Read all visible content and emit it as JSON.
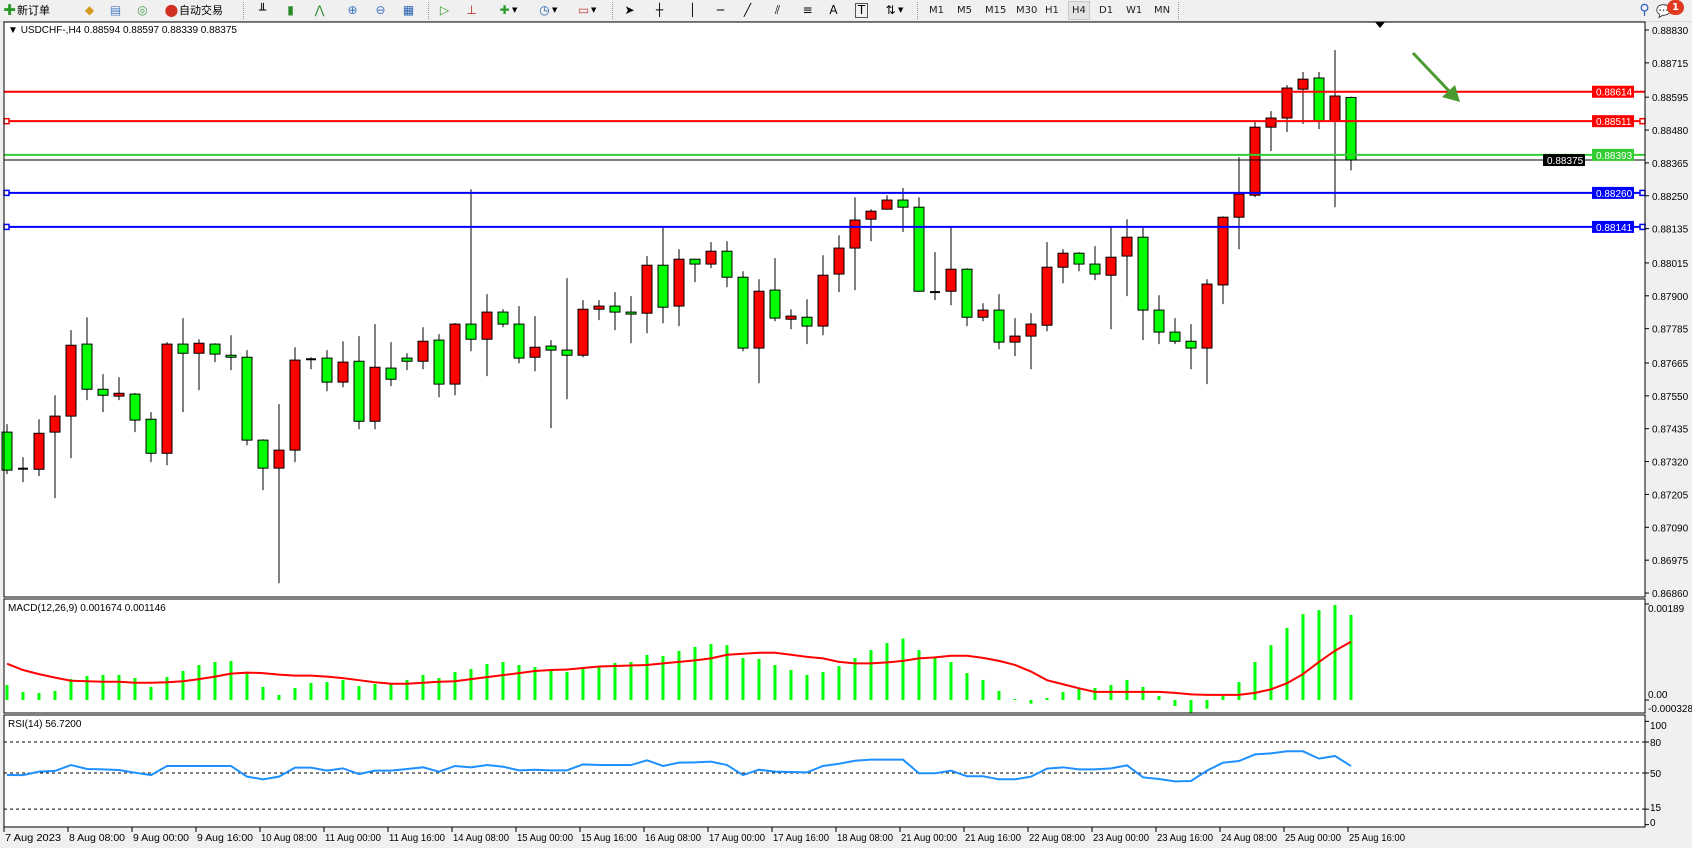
{
  "toolbar": {
    "new_order_label": "新订单",
    "auto_trading_label": "自动交易",
    "icons": [
      "new-order-icon",
      "history-icon",
      "terminal-icon",
      "signal-icon",
      "auto-trading-icon",
      "bar-chart-icon",
      "candlestick-icon",
      "line-chart-icon",
      "zoom-in-icon",
      "zoom-out-icon",
      "tile-windows-icon",
      "auto-scroll-icon",
      "chart-shift-icon",
      "indicators-icon",
      "periods-icon",
      "templates-icon",
      "cursor-icon",
      "crosshair-icon",
      "vertical-line-icon",
      "horizontal-line-icon",
      "trendline-icon",
      "equidistant-channel-icon",
      "fibonacci-icon",
      "text-icon",
      "text-label-icon",
      "arrows-icon"
    ],
    "text_tool_label": "A",
    "label_tool_label": "T",
    "timeframes": [
      "M1",
      "M5",
      "M15",
      "M30",
      "H1",
      "H4",
      "D1",
      "W1",
      "MN"
    ],
    "selected_timeframe": "H4",
    "notification_count": "1"
  },
  "chart": {
    "header": "USDCHF-,H4  0.88594 0.88597 0.88339 0.88375",
    "colors": {
      "bull": "#ff0000",
      "bear": "#00ff00",
      "doji": "#000000",
      "macd_hist": "#00ff00",
      "macd_signal": "#ff0000",
      "rsi": "#1e90ff",
      "arrow": "#4a9a30"
    },
    "price_ticks": [
      "0.88830",
      "0.88715",
      "0.88595",
      "0.88480",
      "0.88365",
      "0.88250",
      "0.88135",
      "0.88015",
      "0.87900",
      "0.87785",
      "0.87665",
      "0.87550",
      "0.87435",
      "0.87320",
      "0.87205",
      "0.87090",
      "0.86975",
      "0.86860"
    ],
    "hlines": [
      {
        "price": "0.88614",
        "color": "#ff0000",
        "handles": false
      },
      {
        "price": "0.88511",
        "color": "#ff0000",
        "handles": true
      },
      {
        "price": "0.88393",
        "color": "#32cd32",
        "handles": false
      },
      {
        "price": "0.88260",
        "color": "#0000ff",
        "handles": true
      },
      {
        "price": "0.88141",
        "color": "#0000ff",
        "handles": true
      }
    ],
    "current_price": "0.88375",
    "time_labels": [
      "7 Aug 2023",
      "8 Aug 08:00",
      "9 Aug 00:00",
      "9 Aug 16:00",
      "10 Aug 08:00",
      "11 Aug 00:00",
      "11 Aug 16:00",
      "14 Aug 08:00",
      "15 Aug 00:00",
      "15 Aug 16:00",
      "16 Aug 08:00",
      "17 Aug 00:00",
      "17 Aug 16:00",
      "18 Aug 08:00",
      "21 Aug 00:00",
      "21 Aug 16:00",
      "22 Aug 08:00",
      "23 Aug 00:00",
      "23 Aug 16:00",
      "24 Aug 08:00",
      "25 Aug 00:00",
      "25 Aug 16:00"
    ]
  },
  "chart_data": {
    "type": "candlestick",
    "symbol": "USDCHF-",
    "timeframe": "H4",
    "ylim": [
      0.8686,
      0.8883
    ],
    "ohlc": [
      [
        0.87423,
        0.87451,
        0.87276,
        0.8729
      ],
      [
        0.87295,
        0.87335,
        0.87248,
        0.87292
      ],
      [
        0.87293,
        0.87468,
        0.87269,
        0.87419
      ],
      [
        0.87423,
        0.87552,
        0.87192,
        0.87479
      ],
      [
        0.87479,
        0.8778,
        0.87332,
        0.87727
      ],
      [
        0.87731,
        0.87825,
        0.87535,
        0.87573
      ],
      [
        0.87573,
        0.87626,
        0.87493,
        0.87552
      ],
      [
        0.87549,
        0.87615,
        0.87535,
        0.87559
      ],
      [
        0.87556,
        0.8756,
        0.87423,
        0.87465
      ],
      [
        0.87468,
        0.87493,
        0.87318,
        0.87349
      ],
      [
        0.87349,
        0.87738,
        0.87307,
        0.87731
      ],
      [
        0.87731,
        0.87822,
        0.87493,
        0.87699
      ],
      [
        0.87699,
        0.87748,
        0.8757,
        0.87734
      ],
      [
        0.87731,
        0.87734,
        0.87668,
        0.87696
      ],
      [
        0.87692,
        0.87762,
        0.8764,
        0.87685
      ],
      [
        0.87685,
        0.8771,
        0.87377,
        0.87395
      ],
      [
        0.87395,
        0.87398,
        0.8722,
        0.87297
      ],
      [
        0.87297,
        0.87521,
        0.86894,
        0.8736
      ],
      [
        0.8736,
        0.8772,
        0.87318,
        0.87675
      ],
      [
        0.87678,
        0.87685,
        0.87643,
        0.87676
      ],
      [
        0.87682,
        0.8771,
        0.87566,
        0.87598
      ],
      [
        0.87598,
        0.87741,
        0.8758,
        0.87668
      ],
      [
        0.87671,
        0.87759,
        0.87433,
        0.87461
      ],
      [
        0.87461,
        0.87801,
        0.87433,
        0.8765
      ],
      [
        0.87647,
        0.87738,
        0.87584,
        0.87608
      ],
      [
        0.87682,
        0.87699,
        0.8764,
        0.87671
      ],
      [
        0.87671,
        0.8779,
        0.87643,
        0.87741
      ],
      [
        0.87745,
        0.87766,
        0.87545,
        0.87591
      ],
      [
        0.87591,
        0.87805,
        0.87552,
        0.87801
      ],
      [
        0.87801,
        0.88273,
        0.87706,
        0.87748
      ],
      [
        0.87748,
        0.87906,
        0.87619,
        0.87843
      ],
      [
        0.87843,
        0.87853,
        0.8779,
        0.87801
      ],
      [
        0.87801,
        0.87864,
        0.87664,
        0.87682
      ],
      [
        0.87685,
        0.87829,
        0.87636,
        0.8772
      ],
      [
        0.87724,
        0.87745,
        0.87437,
        0.8771
      ],
      [
        0.8771,
        0.87962,
        0.87538,
        0.87692
      ],
      [
        0.87692,
        0.87885,
        0.87685,
        0.87853
      ],
      [
        0.87853,
        0.87885,
        0.87815,
        0.87864
      ],
      [
        0.87864,
        0.87913,
        0.8778,
        0.87843
      ],
      [
        0.87843,
        0.87899,
        0.87734,
        0.87836
      ],
      [
        0.87839,
        0.88039,
        0.87769,
        0.88007
      ],
      [
        0.88007,
        0.88137,
        0.87804,
        0.8786
      ],
      [
        0.87864,
        0.88063,
        0.87794,
        0.88028
      ],
      [
        0.88028,
        0.8803,
        0.87948,
        0.88011
      ],
      [
        0.88011,
        0.88088,
        0.87997,
        0.88056
      ],
      [
        0.88056,
        0.88091,
        0.8793,
        0.87965
      ],
      [
        0.87965,
        0.87986,
        0.87706,
        0.87717
      ],
      [
        0.87717,
        0.87958,
        0.87594,
        0.87916
      ],
      [
        0.8792,
        0.88032,
        0.87811,
        0.87822
      ],
      [
        0.87818,
        0.87853,
        0.87783,
        0.87829
      ],
      [
        0.87825,
        0.87888,
        0.87731,
        0.87794
      ],
      [
        0.87794,
        0.88042,
        0.87762,
        0.87972
      ],
      [
        0.87976,
        0.88112,
        0.87913,
        0.88067
      ],
      [
        0.88067,
        0.88245,
        0.8792,
        0.88165
      ],
      [
        0.88168,
        0.88203,
        0.88091,
        0.88196
      ],
      [
        0.88203,
        0.88252,
        0.88203,
        0.88235
      ],
      [
        0.88235,
        0.88277,
        0.88123,
        0.8821
      ],
      [
        0.8821,
        0.88245,
        0.87914,
        0.87916
      ],
      [
        0.87913,
        0.88053,
        0.87885,
        0.87912
      ],
      [
        0.87916,
        0.8814,
        0.87867,
        0.87993
      ],
      [
        0.87993,
        0.87997,
        0.87794,
        0.87825
      ],
      [
        0.87825,
        0.87874,
        0.87811,
        0.8785
      ],
      [
        0.8785,
        0.87906,
        0.87713,
        0.87738
      ],
      [
        0.87738,
        0.87822,
        0.87689,
        0.87759
      ],
      [
        0.87759,
        0.87839,
        0.87643,
        0.87801
      ],
      [
        0.87797,
        0.88088,
        0.87776,
        0.88
      ],
      [
        0.88,
        0.88063,
        0.87944,
        0.88049
      ],
      [
        0.88049,
        0.88053,
        0.87986,
        0.88011
      ],
      [
        0.88011,
        0.88074,
        0.87955,
        0.87976
      ],
      [
        0.87972,
        0.8814,
        0.87783,
        0.88035
      ],
      [
        0.88039,
        0.88168,
        0.87899,
        0.88105
      ],
      [
        0.88105,
        0.88137,
        0.87745,
        0.8785
      ],
      [
        0.8785,
        0.87902,
        0.87731,
        0.87773
      ],
      [
        0.87773,
        0.87822,
        0.87731,
        0.87741
      ],
      [
        0.87741,
        0.87801,
        0.87643,
        0.87717
      ],
      [
        0.87717,
        0.87958,
        0.87591,
        0.87941
      ],
      [
        0.87938,
        0.88178,
        0.87871,
        0.88175
      ],
      [
        0.88175,
        0.88385,
        0.88063,
        0.88256
      ],
      [
        0.88252,
        0.88508,
        0.88245,
        0.8849
      ],
      [
        0.8849,
        0.88546,
        0.88406,
        0.88522
      ],
      [
        0.88522,
        0.88637,
        0.88473,
        0.88627
      ],
      [
        0.88623,
        0.88683,
        0.88501,
        0.88658
      ],
      [
        0.88662,
        0.88683,
        0.88483,
        0.88511
      ],
      [
        0.88511,
        0.8876,
        0.8821,
        0.88599
      ],
      [
        0.88594,
        0.88597,
        0.88339,
        0.88375
      ]
    ],
    "macd": {
      "label": "MACD(12,26,9) 0.001674 0.001146",
      "ylim": [
        -0.000328,
        0.00189
      ],
      "tick_labels": [
        "0.00189",
        "0.00",
        "-0.000328"
      ],
      "histogram": [
        0.000295,
        0.000157,
        0.000138,
        0.000177,
        0.000413,
        0.000472,
        0.000492,
        0.000492,
        0.000433,
        0.000256,
        0.000453,
        0.000571,
        0.000689,
        0.000748,
        0.000768,
        0.000545,
        0.000256,
        9.8e-05,
        0.000236,
        0.000335,
        0.000354,
        0.000394,
        0.000276,
        0.000315,
        0.000335,
        0.000394,
        0.000492,
        0.000433,
        0.000551,
        0.00061,
        0.000708,
        0.000748,
        0.000689,
        0.000649,
        0.00059,
        0.000551,
        0.00063,
        0.000669,
        0.000728,
        0.000748,
        0.000886,
        0.000866,
        0.000964,
        0.001043,
        0.0011,
        0.00108,
        0.000827,
        0.000807,
        0.000689,
        0.00059,
        0.000492,
        0.000551,
        0.000669,
        0.000827,
        0.000984,
        0.00112,
        0.00121,
        0.000984,
        0.000827,
        0.000748,
        0.000531,
        0.000394,
        0.000177,
        2e-05,
        -7.2e-05,
        3.9e-05,
        0.000157,
        0.000216,
        0.000236,
        0.000295,
        0.000394,
        0.000256,
        7.9e-05,
        -0.000118,
        -0.000249,
        -0.000171,
        7.9e-05,
        0.000354,
        0.000748,
        0.00108,
        0.00142,
        0.00169,
        0.00177,
        0.00187,
        0.001674
      ],
      "signal": [
        0.000715,
        0.00059,
        0.00051,
        0.00044,
        0.00038,
        0.00037,
        0.00036,
        0.00036,
        0.00034,
        0.00034,
        0.00035,
        0.00037,
        0.00041,
        0.00046,
        0.00052,
        0.00054,
        0.00053,
        0.0005,
        0.00048,
        0.00048,
        0.00046,
        0.00043,
        0.00039,
        0.00035,
        0.00032,
        0.00032,
        0.00034,
        0.00036,
        0.00037,
        0.00041,
        0.00045,
        0.00049,
        0.00053,
        0.00057,
        0.00059,
        0.0006,
        0.00063,
        0.00066,
        0.00067,
        0.00068,
        0.00069,
        0.00072,
        0.00075,
        0.00078,
        0.00082,
        0.00089,
        0.00091,
        0.00093,
        0.00093,
        0.00089,
        0.00085,
        0.00082,
        0.00075,
        0.00072,
        0.00072,
        0.00074,
        0.00077,
        0.00082,
        0.00084,
        0.00087,
        0.00087,
        0.00083,
        0.00077,
        0.00069,
        0.00056,
        0.00039,
        0.00031,
        0.00023,
        0.00016,
        0.00016,
        0.00016,
        0.00016,
        0.00016,
        0.00014,
        0.00011,
        0.0001,
        0.0001,
        0.0001,
        0.00014,
        0.00021,
        0.00033,
        0.00051,
        0.00075,
        0.00097,
        0.001146
      ]
    },
    "rsi": {
      "label": "RSI(14) 56.7200",
      "levels": [
        80,
        50,
        15
      ],
      "tick_labels": [
        "100",
        "80",
        "50",
        "15",
        "0"
      ],
      "values": [
        48.1,
        48,
        51.3,
        52,
        57.7,
        53.9,
        53.5,
        52.9,
        50.3,
        48,
        56.8,
        56.8,
        56.8,
        56.8,
        56.8,
        46.5,
        43.9,
        46.5,
        55.2,
        55.2,
        52.3,
        54.5,
        49,
        52.3,
        52.3,
        53.9,
        55.5,
        51.3,
        56.8,
        55.5,
        57.7,
        56.1,
        52.6,
        53.2,
        52.6,
        52.6,
        58.4,
        57.7,
        57.7,
        57.7,
        62.3,
        56.8,
        60,
        60.3,
        61,
        57.7,
        48,
        53.2,
        51.3,
        51,
        50.6,
        56.8,
        59,
        61.9,
        62.9,
        62.9,
        62.9,
        49.7,
        49.7,
        52.3,
        46.8,
        46.8,
        43.9,
        43.9,
        46.5,
        54.2,
        55.5,
        53.5,
        53.5,
        54.5,
        57.4,
        45.8,
        44.2,
        41.9,
        42.3,
        52.3,
        60,
        61.6,
        68,
        69,
        71,
        71,
        63.9,
        66.5,
        56.72
      ]
    }
  }
}
